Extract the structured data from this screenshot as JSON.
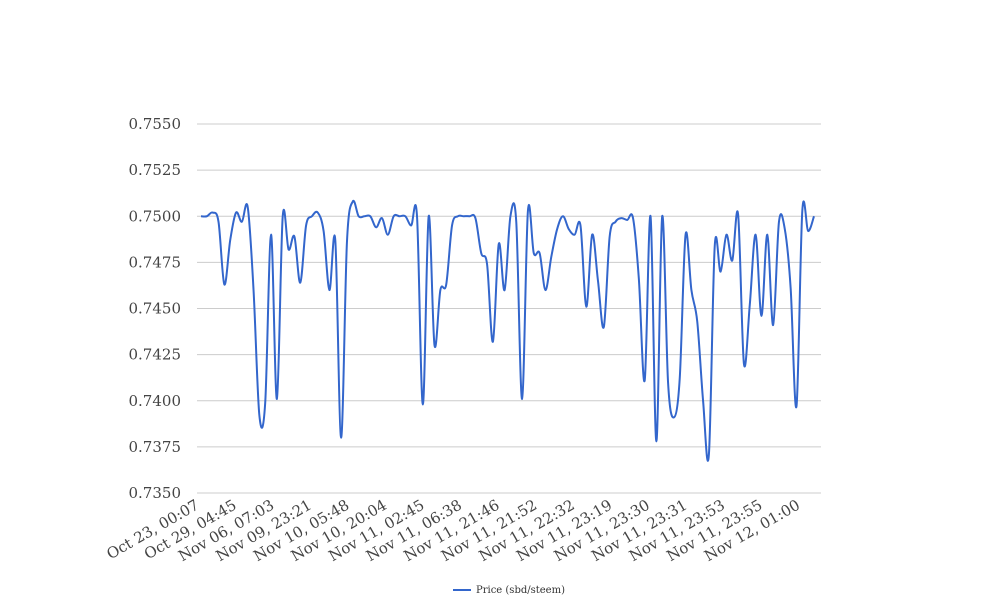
{
  "chart_data": {
    "type": "line",
    "title": "",
    "xlabel": "",
    "ylabel": "",
    "ylim": [
      0.735,
      0.755
    ],
    "yticks": [
      "0.7550",
      "0.7525",
      "0.7500",
      "0.7475",
      "0.7450",
      "0.7425",
      "0.7400",
      "0.7375",
      "0.7350"
    ],
    "ytick_values": [
      0.755,
      0.7525,
      0.75,
      0.7475,
      0.745,
      0.7425,
      0.74,
      0.7375,
      0.735
    ],
    "xticks": [
      "Oct 23, 00:07",
      "Oct 29, 04:45",
      "Nov 06, 07:03",
      "Nov 09, 23:21",
      "Nov 10, 05:48",
      "Nov 10, 20:04",
      "Nov 11, 02:45",
      "Nov 11, 06:38",
      "Nov 11, 21:46",
      "Nov 11, 21:52",
      "Nov 11, 22:32",
      "Nov 11, 23:19",
      "Nov 11, 23:30",
      "Nov 11, 23:31",
      "Nov 11, 23:53",
      "Nov 11, 23:55",
      "Nov 12, 01:00"
    ],
    "grid": true,
    "legend_position": "bottom",
    "series": [
      {
        "name": "Price (sbd/steem)",
        "color": "#3366cc",
        "values": [
          0.75,
          0.75,
          0.7502,
          0.7497,
          0.7463,
          0.7487,
          0.7502,
          0.7497,
          0.7505,
          0.746,
          0.7392,
          0.7399,
          0.749,
          0.7401,
          0.75,
          0.7482,
          0.7489,
          0.7464,
          0.7495,
          0.75,
          0.7502,
          0.7492,
          0.746,
          0.7487,
          0.738,
          0.7486,
          0.7508,
          0.75,
          0.75,
          0.75,
          0.7494,
          0.7499,
          0.749,
          0.75,
          0.75,
          0.75,
          0.7495,
          0.75,
          0.7398,
          0.75,
          0.743,
          0.746,
          0.7463,
          0.7495,
          0.75,
          0.75,
          0.75,
          0.7499,
          0.748,
          0.7474,
          0.7432,
          0.7485,
          0.746,
          0.75,
          0.7497,
          0.7401,
          0.7503,
          0.748,
          0.748,
          0.746,
          0.7478,
          0.7493,
          0.75,
          0.7493,
          0.749,
          0.7495,
          0.7451,
          0.749,
          0.7465,
          0.744,
          0.7489,
          0.7497,
          0.7499,
          0.7498,
          0.7499,
          0.7466,
          0.7411,
          0.75,
          0.7378,
          0.75,
          0.741,
          0.7391,
          0.7412,
          0.749,
          0.746,
          0.7443,
          0.74,
          0.7371,
          0.7484,
          0.747,
          0.749,
          0.7476,
          0.7501,
          0.742,
          0.7452,
          0.749,
          0.7446,
          0.749,
          0.7441,
          0.7497,
          0.7493,
          0.7461,
          0.7397,
          0.7503,
          0.7492,
          0.75
        ]
      }
    ]
  }
}
